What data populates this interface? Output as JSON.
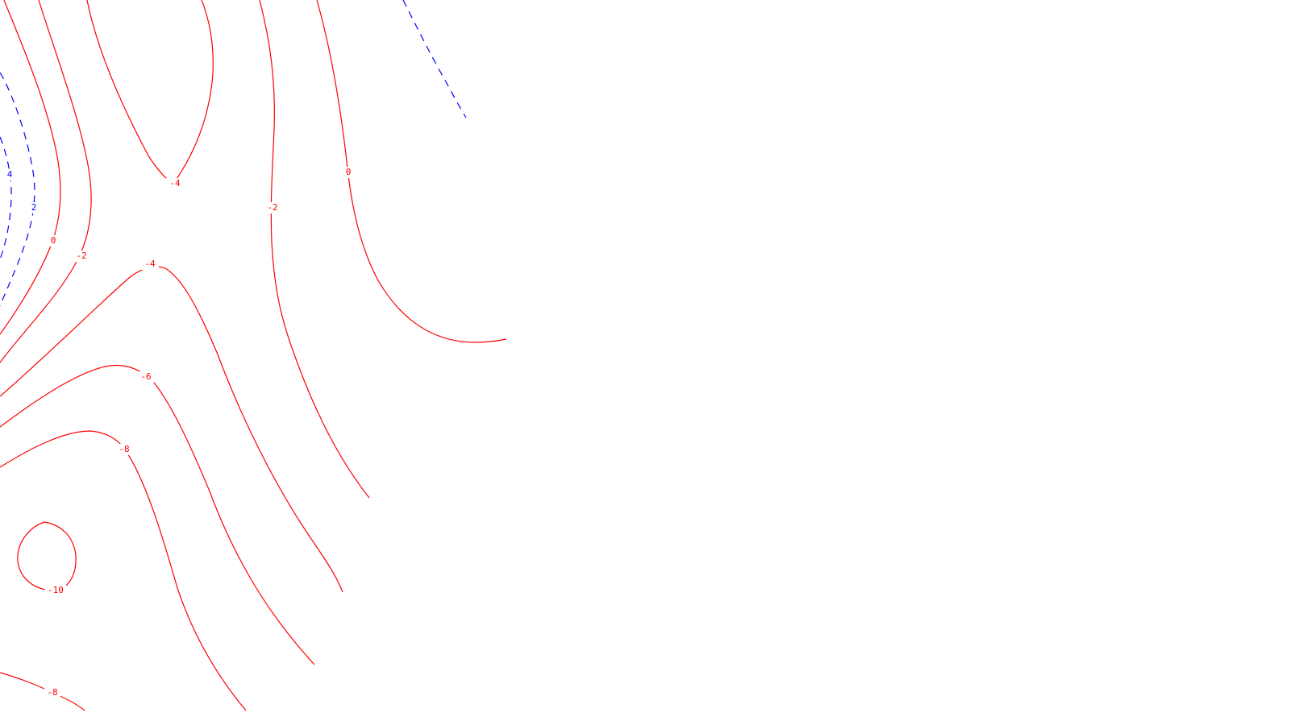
{
  "map": {
    "colors": {
      "background": "#ffffff",
      "negative_contour": "#ff0000",
      "positive_contour": "#0000ff"
    },
    "contours": [
      {
        "id": "c-neg4-top",
        "level": "-4",
        "style": "solid",
        "label": "-4"
      },
      {
        "id": "c-neg4-bottom",
        "level": "-4",
        "style": "solid",
        "label": "-4"
      },
      {
        "id": "c-neg2-left",
        "level": "-2",
        "style": "solid",
        "label": "-2"
      },
      {
        "id": "c-neg2-mid",
        "level": "-2",
        "style": "solid",
        "label": "-2"
      },
      {
        "id": "c-0-left",
        "level": "0",
        "style": "solid",
        "label": "0"
      },
      {
        "id": "c-0-right",
        "level": "0",
        "style": "solid",
        "label": "0"
      },
      {
        "id": "c-neg6",
        "level": "-6",
        "style": "solid",
        "label": "-6"
      },
      {
        "id": "c-neg8",
        "level": "-8",
        "style": "solid",
        "label": "-8"
      },
      {
        "id": "c-neg8-bottom",
        "level": "-8",
        "style": "solid",
        "label": "-8"
      },
      {
        "id": "c-neg10",
        "level": "-10",
        "style": "solid",
        "label": "-10"
      },
      {
        "id": "c-pos2",
        "level": "2",
        "style": "dashed",
        "label": "2"
      },
      {
        "id": "c-pos4",
        "level": "4",
        "style": "dashed",
        "label": "4"
      },
      {
        "id": "c-pos-topright",
        "level": "2",
        "style": "dashed",
        "label": ""
      }
    ]
  }
}
